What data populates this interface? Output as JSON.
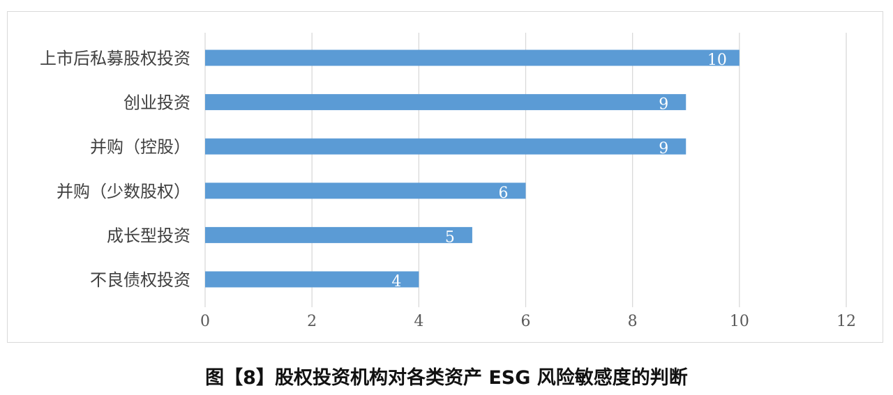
{
  "caption": "图【8】股权投资机构对各类资产 ESG 风险敏感度的判断",
  "colors": {
    "bar": "#5b9bd5",
    "grid": "#d9d9d9",
    "frame": "#d9d9d9",
    "bar_label": "#ffffff"
  },
  "chart_data": {
    "type": "bar",
    "orientation": "horizontal",
    "categories": [
      "上市后私募股权投资",
      "创业投资",
      "并购（控股）",
      "并购（少数股权）",
      "成长型投资",
      "不良债权投资"
    ],
    "values": [
      10,
      9,
      9,
      6,
      5,
      4
    ],
    "xlim": [
      0,
      12
    ],
    "xticks": [
      "0",
      "2",
      "4",
      "6",
      "8",
      "10",
      "12"
    ],
    "grid": true,
    "data_labels": true
  }
}
